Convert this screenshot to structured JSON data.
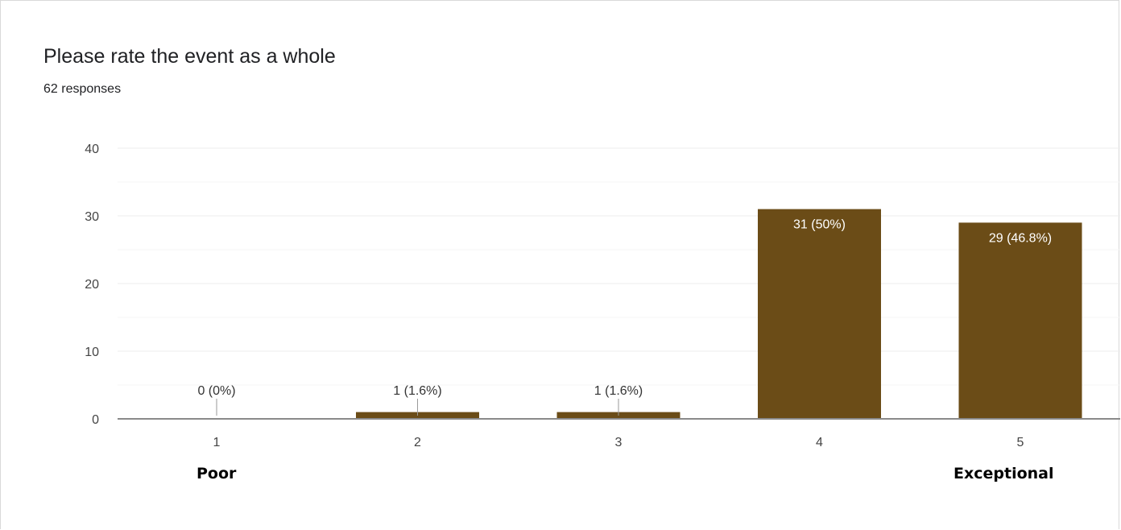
{
  "header": {
    "title": "Please rate the event as a whole",
    "subtitle": "62 responses"
  },
  "scale_labels": {
    "low": "Poor",
    "high": "Exceptional"
  },
  "colors": {
    "bar": "#6b4c17",
    "grid": "#ededed",
    "axis": "#8a8a8a",
    "tick_text": "#444444"
  },
  "chart_data": {
    "type": "bar",
    "title": "Please rate the event as a whole",
    "subtitle": "62 responses",
    "categories": [
      "1",
      "2",
      "3",
      "4",
      "5"
    ],
    "values": [
      0,
      1,
      1,
      31,
      29
    ],
    "data_labels": [
      "0 (0%)",
      "1 (1.6%)",
      "1 (1.6%)",
      "31 (50%)",
      "29 (46.8%)"
    ],
    "yticks": [
      0,
      10,
      20,
      30,
      40
    ],
    "ylim": [
      0,
      40
    ],
    "grid": true,
    "xlabel": "",
    "ylabel": ""
  }
}
